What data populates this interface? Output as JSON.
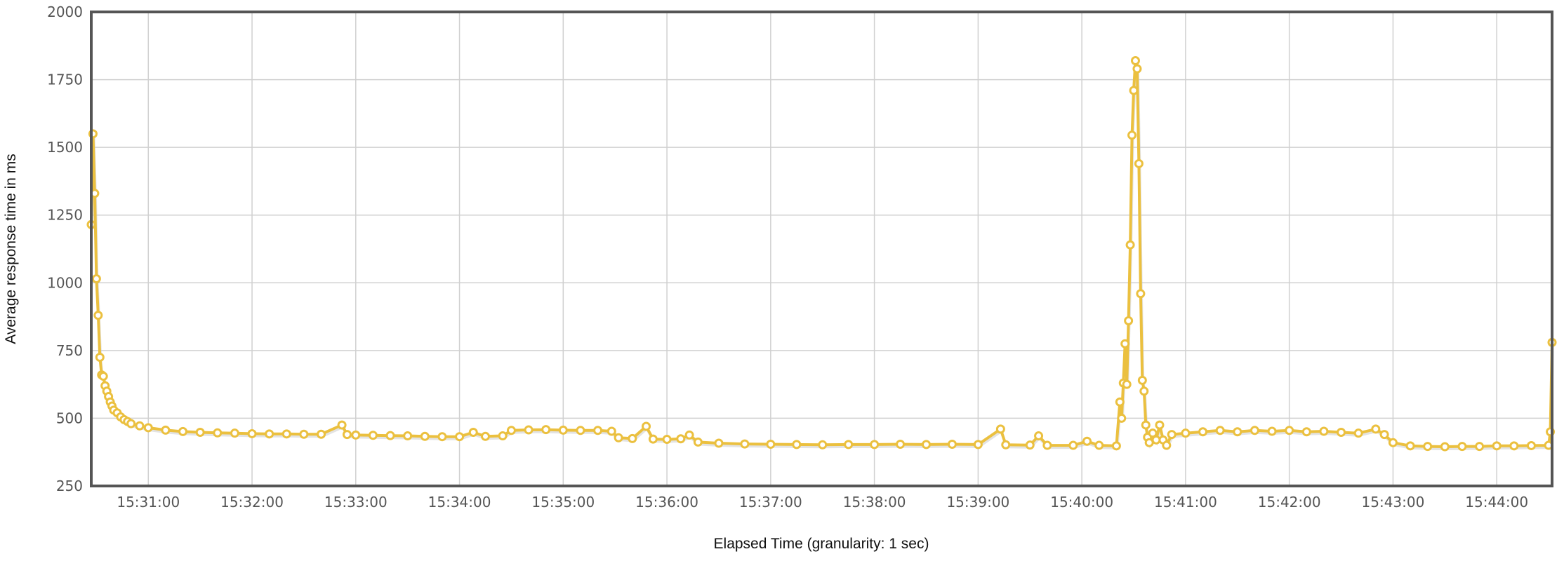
{
  "chart_data": {
    "type": "line",
    "title": "",
    "xlabel": "Elapsed Time (granularity: 1 sec)",
    "ylabel": "Average response time in ms",
    "xlim": [
      "15:30:27",
      "15:44:32"
    ],
    "ylim": [
      250,
      2000
    ],
    "yticks": [
      "250",
      "500",
      "750",
      "1000",
      "1250",
      "1500",
      "1750",
      "2000"
    ],
    "xticks": [
      "15:31:00",
      "15:32:00",
      "15:33:00",
      "15:34:00",
      "15:35:00",
      "15:36:00",
      "15:37:00",
      "15:38:00",
      "15:39:00",
      "15:40:00",
      "15:41:00",
      "15:42:00",
      "15:43:00",
      "15:44:00"
    ],
    "grid": true,
    "color": "#ebc03f",
    "series": [
      {
        "points": [
          [
            "15:30:27",
            1215
          ],
          [
            "15:30:28",
            1550
          ],
          [
            "15:30:29",
            1330
          ],
          [
            "15:30:30",
            1015
          ],
          [
            "15:30:31",
            880
          ],
          [
            "15:30:32",
            725
          ],
          [
            "15:30:33",
            660
          ],
          [
            "15:30:34",
            655
          ],
          [
            "15:30:35",
            620
          ],
          [
            "15:30:36",
            600
          ],
          [
            "15:30:37",
            580
          ],
          [
            "15:30:38",
            560
          ],
          [
            "15:30:39",
            545
          ],
          [
            "15:30:40",
            530
          ],
          [
            "15:30:42",
            520
          ],
          [
            "15:30:44",
            505
          ],
          [
            "15:30:46",
            495
          ],
          [
            "15:30:48",
            488
          ],
          [
            "15:30:50",
            480
          ],
          [
            "15:30:55",
            472
          ],
          [
            "15:31:00",
            465
          ],
          [
            "15:31:10",
            456
          ],
          [
            "15:31:20",
            451
          ],
          [
            "15:31:30",
            448
          ],
          [
            "15:31:40",
            446
          ],
          [
            "15:31:50",
            445
          ],
          [
            "15:32:00",
            443
          ],
          [
            "15:32:10",
            442
          ],
          [
            "15:32:20",
            442
          ],
          [
            "15:32:30",
            441
          ],
          [
            "15:32:40",
            441
          ],
          [
            "15:32:52",
            475
          ],
          [
            "15:32:55",
            440
          ],
          [
            "15:33:00",
            438
          ],
          [
            "15:33:10",
            437
          ],
          [
            "15:33:20",
            436
          ],
          [
            "15:33:30",
            435
          ],
          [
            "15:33:40",
            433
          ],
          [
            "15:33:50",
            432
          ],
          [
            "15:34:00",
            432
          ],
          [
            "15:34:08",
            448
          ],
          [
            "15:34:15",
            433
          ],
          [
            "15:34:25",
            435
          ],
          [
            "15:34:30",
            455
          ],
          [
            "15:34:40",
            457
          ],
          [
            "15:34:50",
            458
          ],
          [
            "15:35:00",
            456
          ],
          [
            "15:35:10",
            455
          ],
          [
            "15:35:20",
            455
          ],
          [
            "15:35:28",
            452
          ],
          [
            "15:35:32",
            428
          ],
          [
            "15:35:40",
            425
          ],
          [
            "15:35:48",
            470
          ],
          [
            "15:35:52",
            423
          ],
          [
            "15:36:00",
            422
          ],
          [
            "15:36:08",
            424
          ],
          [
            "15:36:13",
            438
          ],
          [
            "15:36:18",
            412
          ],
          [
            "15:36:30",
            408
          ],
          [
            "15:36:45",
            405
          ],
          [
            "15:37:00",
            404
          ],
          [
            "15:37:15",
            403
          ],
          [
            "15:37:30",
            402
          ],
          [
            "15:37:45",
            403
          ],
          [
            "15:38:00",
            403
          ],
          [
            "15:38:15",
            404
          ],
          [
            "15:38:30",
            403
          ],
          [
            "15:38:45",
            404
          ],
          [
            "15:39:00",
            403
          ],
          [
            "15:39:13",
            460
          ],
          [
            "15:39:16",
            402
          ],
          [
            "15:39:30",
            401
          ],
          [
            "15:39:35",
            435
          ],
          [
            "15:39:40",
            400
          ],
          [
            "15:39:55",
            400
          ],
          [
            "15:40:03",
            415
          ],
          [
            "15:40:10",
            400
          ],
          [
            "15:40:20",
            398
          ],
          [
            "15:40:22",
            560
          ],
          [
            "15:40:23",
            500
          ],
          [
            "15:40:24",
            630
          ],
          [
            "15:40:25",
            775
          ],
          [
            "15:40:26",
            625
          ],
          [
            "15:40:27",
            860
          ],
          [
            "15:40:28",
            1140
          ],
          [
            "15:40:29",
            1545
          ],
          [
            "15:40:30",
            1710
          ],
          [
            "15:40:31",
            1820
          ],
          [
            "15:40:32",
            1790
          ],
          [
            "15:40:33",
            1440
          ],
          [
            "15:40:34",
            960
          ],
          [
            "15:40:35",
            640
          ],
          [
            "15:40:36",
            600
          ],
          [
            "15:40:37",
            475
          ],
          [
            "15:40:38",
            430
          ],
          [
            "15:40:39",
            410
          ],
          [
            "15:40:41",
            445
          ],
          [
            "15:40:43",
            420
          ],
          [
            "15:40:45",
            475
          ],
          [
            "15:40:47",
            420
          ],
          [
            "15:40:49",
            400
          ],
          [
            "15:40:52",
            440
          ],
          [
            "15:41:00",
            445
          ],
          [
            "15:41:10",
            450
          ],
          [
            "15:41:20",
            455
          ],
          [
            "15:41:30",
            450
          ],
          [
            "15:41:40",
            455
          ],
          [
            "15:41:50",
            452
          ],
          [
            "15:42:00",
            455
          ],
          [
            "15:42:10",
            450
          ],
          [
            "15:42:20",
            452
          ],
          [
            "15:42:30",
            448
          ],
          [
            "15:42:40",
            445
          ],
          [
            "15:42:50",
            460
          ],
          [
            "15:42:55",
            440
          ],
          [
            "15:43:00",
            410
          ],
          [
            "15:43:10",
            398
          ],
          [
            "15:43:20",
            396
          ],
          [
            "15:43:30",
            395
          ],
          [
            "15:43:40",
            396
          ],
          [
            "15:43:50",
            396
          ],
          [
            "15:44:00",
            398
          ],
          [
            "15:44:10",
            398
          ],
          [
            "15:44:20",
            399
          ],
          [
            "15:44:30",
            400
          ],
          [
            "15:44:31",
            450
          ],
          [
            "15:44:32",
            780
          ]
        ]
      }
    ]
  }
}
